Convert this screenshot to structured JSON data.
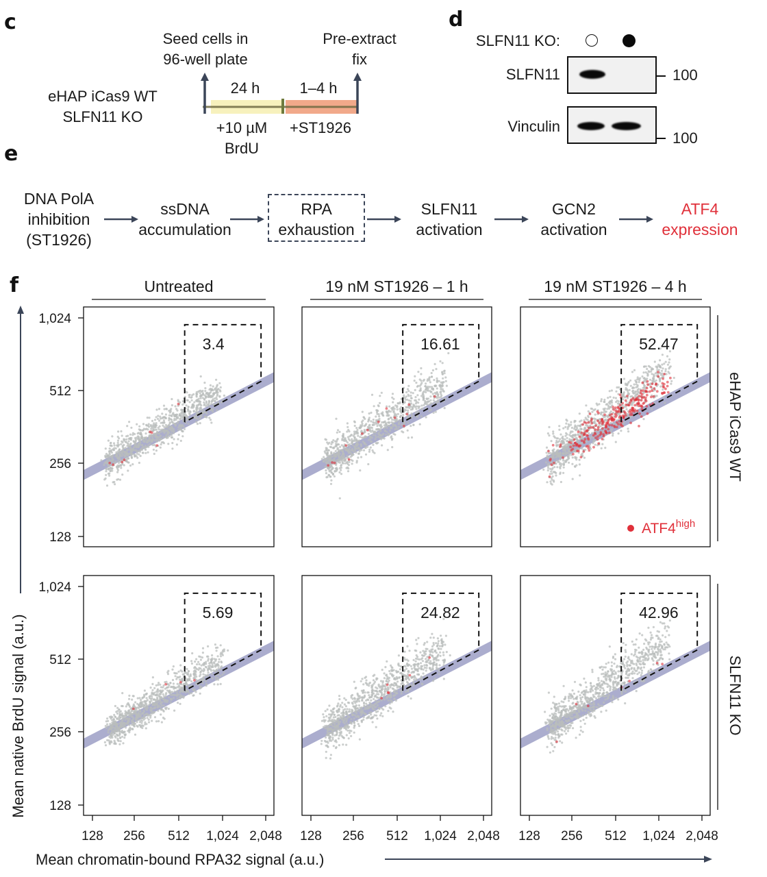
{
  "panels": {
    "c": {
      "letter": "c",
      "cell_lines": [
        "eHAP iCas9 WT",
        "SLFN11 KO"
      ],
      "start_label": [
        "Seed cells in",
        "96-well plate"
      ],
      "end_label": [
        "Pre-extract",
        "fix"
      ],
      "phase1": {
        "duration": "24 h",
        "treatment": [
          "+10 µM",
          "BrdU"
        ],
        "color": "#f7f1bd"
      },
      "phase2": {
        "duration": "1–4 h",
        "treatment": [
          "+ST1926"
        ],
        "color": "#f1a98a"
      }
    },
    "d": {
      "letter": "d",
      "ko_label": "SLFN11 KO:",
      "lanes": [
        {
          "ko": false,
          "symbol": "open-circle"
        },
        {
          "ko": true,
          "symbol": "filled-circle"
        }
      ],
      "blots": [
        {
          "name": "SLFN11",
          "marker": "100",
          "bands": [
            1,
            0
          ]
        },
        {
          "name": "Vinculin",
          "marker": "100",
          "bands": [
            1,
            1
          ]
        }
      ]
    },
    "e": {
      "letter": "e",
      "steps": [
        {
          "lines": [
            "DNA PolA",
            "inhibition",
            "(ST1926)"
          ],
          "boxed": false,
          "highlight": false
        },
        {
          "lines": [
            "ssDNA",
            "accumulation"
          ],
          "boxed": false,
          "highlight": false
        },
        {
          "lines": [
            "RPA",
            "exhaustion"
          ],
          "boxed": true,
          "highlight": false
        },
        {
          "lines": [
            "SLFN11",
            "activation"
          ],
          "boxed": false,
          "highlight": false
        },
        {
          "lines": [
            "GCN2",
            "activation"
          ],
          "boxed": false,
          "highlight": false
        },
        {
          "lines": [
            "ATF4",
            "expression"
          ],
          "boxed": false,
          "highlight": true
        }
      ],
      "highlight_color": "#e0303a"
    },
    "f": {
      "letter": "f"
    }
  },
  "chart_data": {
    "type": "scatter",
    "title": "",
    "xlabel": "Mean chromatin-bound RPA32 signal (a.u.)",
    "ylabel": "Mean native BrdU signal (a.u.)",
    "x_scale": "log2",
    "y_scale": "log2",
    "xlim": [
      128,
      2048
    ],
    "ylim": [
      128,
      1024
    ],
    "x_ticks": [
      128,
      256,
      512,
      1024,
      2048
    ],
    "x_tick_labels": [
      "128",
      "256",
      "512",
      "1,024",
      "2,048"
    ],
    "y_ticks": [
      128,
      256,
      512,
      1024
    ],
    "y_tick_labels": [
      "128",
      "256",
      "512",
      "1,024"
    ],
    "column_headers": [
      "Untreated",
      "19 nM ST1926 – 1 h",
      "19 nM ST1926 – 4 h"
    ],
    "row_labels": [
      "eHAP iCas9 WT",
      "SLFN11 KO"
    ],
    "legend": {
      "label": "ATF4",
      "superscript": "high",
      "color": "#e0303a",
      "placement": "bottom-right"
    },
    "point_color": "#b9bdbc",
    "fit_band_color": "#a7a9cc",
    "gate": {
      "x_min": 560,
      "x_max": 1900,
      "y_max": 960
    },
    "fit_line": {
      "x": [
        128,
        2048
      ],
      "y": [
        240,
        560
      ]
    },
    "panels": [
      {
        "row": 0,
        "col": 0,
        "gate_percent": "3.4",
        "cluster": {
          "x_center": 230,
          "y_center": 300,
          "spread": 1.0,
          "x_extent": [
            165,
            1500
          ]
        },
        "atf4_high_count": 8
      },
      {
        "row": 0,
        "col": 1,
        "gate_percent": "16.61",
        "cluster": {
          "x_center": 280,
          "y_center": 320,
          "spread": 1.2,
          "x_extent": [
            165,
            1700
          ]
        },
        "atf4_high_count": 14
      },
      {
        "row": 0,
        "col": 2,
        "gate_percent": "52.47",
        "cluster": {
          "x_center": 400,
          "y_center": 380,
          "spread": 1.3,
          "x_extent": [
            180,
            1800
          ]
        },
        "atf4_high_count": 260
      },
      {
        "row": 1,
        "col": 0,
        "gate_percent": "5.69",
        "cluster": {
          "x_center": 230,
          "y_center": 290,
          "spread": 1.0,
          "x_extent": [
            170,
            1500
          ]
        },
        "atf4_high_count": 4
      },
      {
        "row": 1,
        "col": 1,
        "gate_percent": "24.82",
        "cluster": {
          "x_center": 300,
          "y_center": 320,
          "spread": 1.2,
          "x_extent": [
            165,
            1700
          ]
        },
        "atf4_high_count": 6
      },
      {
        "row": 1,
        "col": 2,
        "gate_percent": "42.96",
        "cluster": {
          "x_center": 420,
          "y_center": 360,
          "spread": 1.25,
          "x_extent": [
            180,
            1800
          ]
        },
        "atf4_high_count": 7
      }
    ]
  }
}
